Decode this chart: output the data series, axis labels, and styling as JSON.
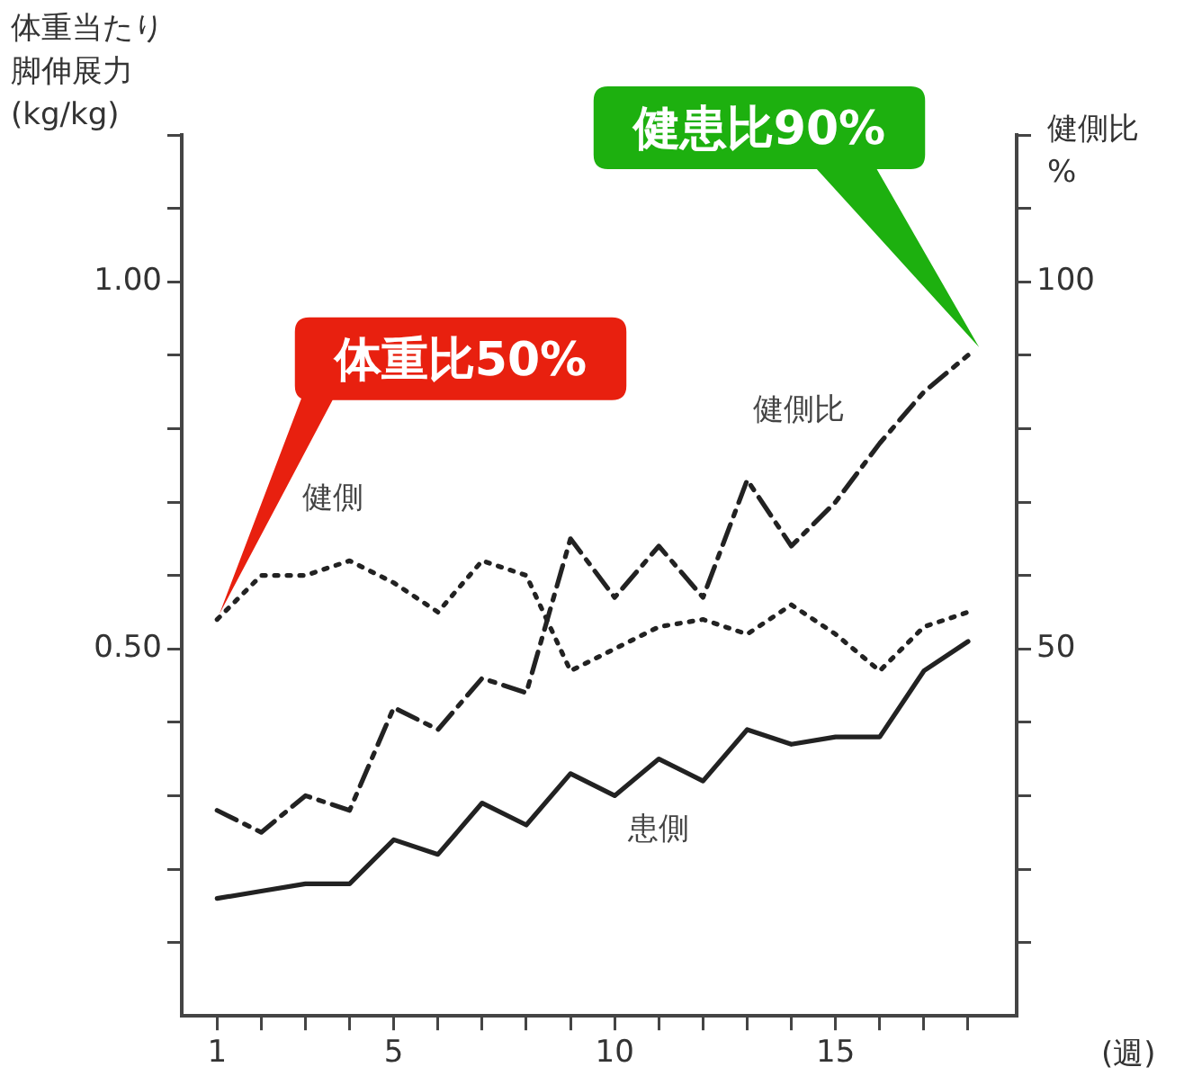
{
  "chart_data": {
    "type": "line",
    "ylabel": "体重当たり脚伸展力(kg/kg)",
    "y2label": "健側比%",
    "xlabel": "(週)",
    "x": [
      1,
      2,
      3,
      4,
      5,
      6,
      7,
      8,
      9,
      10,
      11,
      12,
      13,
      14,
      15,
      16,
      17,
      18
    ],
    "series": [
      {
        "name": "健側",
        "color": "#222222",
        "line_style": "dotted",
        "values": [
          0.54,
          0.6,
          0.6,
          0.62,
          0.59,
          0.55,
          0.62,
          0.6,
          0.47,
          0.5,
          0.53,
          0.54,
          0.52,
          0.56,
          0.52,
          0.47,
          0.53,
          0.55
        ]
      },
      {
        "name": "患側",
        "color": "#222222",
        "line_style": "solid",
        "values": [
          0.16,
          0.17,
          0.18,
          0.18,
          0.24,
          0.22,
          0.29,
          0.26,
          0.33,
          0.3,
          0.35,
          0.32,
          0.39,
          0.37,
          0.38,
          0.38,
          0.47,
          0.51
        ]
      },
      {
        "name": "健側比",
        "color": "#222222",
        "line_style": "dashed",
        "axis": "y2",
        "values": [
          28,
          25,
          30,
          28,
          42,
          39,
          46,
          44,
          65,
          57,
          64,
          57,
          73,
          64,
          70,
          78,
          85,
          90
        ]
      }
    ],
    "xlim": [
      0.2,
      19.1
    ],
    "xticks": [
      1,
      {
        "value": 2,
        "label": null
      },
      {
        "value": 3,
        "label": null
      },
      {
        "value": 4,
        "label": null
      },
      5,
      {
        "value": 6,
        "label": null
      },
      {
        "value": 7,
        "label": null
      },
      {
        "value": 8,
        "label": null
      },
      {
        "value": 9,
        "label": null
      },
      10,
      {
        "value": 11,
        "label": null
      },
      {
        "value": 12,
        "label": null
      },
      {
        "value": 13,
        "label": null
      },
      {
        "value": 14,
        "label": null
      },
      15,
      {
        "value": 16,
        "label": null
      },
      {
        "value": 17,
        "label": null
      },
      {
        "value": 18,
        "label": null
      }
    ],
    "ylim": [
      0,
      1.2
    ],
    "yticks": [
      {
        "value": 0.1,
        "label": null
      },
      {
        "value": 0.2,
        "label": null
      },
      {
        "value": 0.3,
        "label": null
      },
      {
        "value": 0.4,
        "label": null
      },
      {
        "value": 0.5,
        "label": "0.50"
      },
      {
        "value": 0.6,
        "label": null
      },
      {
        "value": 0.7,
        "label": null
      },
      {
        "value": 0.8,
        "label": null
      },
      {
        "value": 0.9,
        "label": null
      },
      {
        "value": 1.0,
        "label": "1.00"
      },
      {
        "value": 1.1,
        "label": null
      },
      {
        "value": 1.2,
        "label": null
      }
    ],
    "y2lim": [
      0,
      120
    ],
    "y2ticks": [
      {
        "value": 10,
        "label": null
      },
      {
        "value": 20,
        "label": null
      },
      {
        "value": 30,
        "label": null
      },
      {
        "value": 40,
        "label": null
      },
      50,
      {
        "value": 60,
        "label": null
      },
      {
        "value": 70,
        "label": null
      },
      {
        "value": 80,
        "label": null
      },
      {
        "value": 90,
        "label": null
      },
      100,
      {
        "value": 110,
        "label": null
      },
      {
        "value": 120,
        "label": null
      }
    ],
    "annotations": [
      "体重比50%",
      "健患比90%"
    ],
    "grid": false,
    "legend": false,
    "marker": "none"
  }
}
